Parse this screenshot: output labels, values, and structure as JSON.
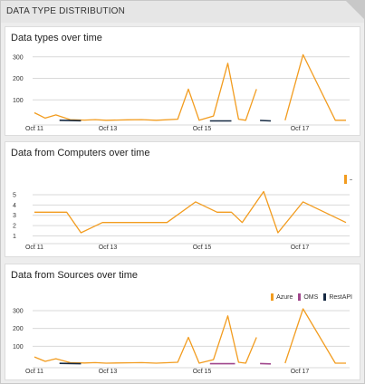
{
  "panel": {
    "title": "DATA TYPE DISTRIBUTION"
  },
  "colors": {
    "azure": "#f29c1f",
    "oms": "#a0468c",
    "restapi": "#152942",
    "grid": "#d9d9d9"
  },
  "legend": {
    "azure": "Azure",
    "oms": "OMS",
    "restapi": "RestAPI"
  },
  "chart_data": [
    {
      "type": "line",
      "title": "Data types over time",
      "x_ticks": [
        "Oct 11",
        "Oct 13",
        "Oct 15",
        "Oct 17"
      ],
      "y_ticks": [
        "100",
        "200",
        "300"
      ],
      "ylim": [
        0,
        320
      ],
      "grid": true,
      "series": [
        {
          "color_key": "azure",
          "segments": [
            [
              [
                0,
                40
              ],
              [
                3,
                15
              ],
              [
                6,
                30
              ],
              [
                10,
                8
              ],
              [
                14,
                6
              ],
              [
                17,
                8
              ],
              [
                20,
                5
              ],
              [
                26,
                7
              ],
              [
                30,
                8
              ],
              [
                34,
                5
              ],
              [
                40,
                10
              ],
              [
                43,
                150
              ],
              [
                46,
                5
              ],
              [
                50,
                25
              ],
              [
                54,
                270
              ],
              [
                57,
                10
              ],
              [
                59,
                5
              ],
              [
                62,
                150
              ]
            ],
            [
              [
                70,
                5
              ],
              [
                75,
                310
              ],
              [
                84,
                5
              ],
              [
                87,
                5
              ]
            ]
          ]
        },
        {
          "color_key": "restapi",
          "segments": [
            [
              [
                7,
                5
              ],
              [
                13,
                3
              ]
            ],
            [
              [
                49,
                2
              ],
              [
                55,
                2
              ]
            ],
            [
              [
                63,
                4
              ],
              [
                66,
                2
              ]
            ]
          ]
        }
      ]
    },
    {
      "type": "line",
      "title": "Data from Computers over time",
      "x_ticks": [
        "Oct 11",
        "Oct 13",
        "Oct 15",
        "Oct 17"
      ],
      "y_ticks": [
        "1",
        "2",
        "3",
        "4",
        "5"
      ],
      "ylim": [
        0.6,
        5.7
      ],
      "grid": true,
      "series": [
        {
          "color_key": "azure",
          "segments": [
            [
              [
                0,
                3.3
              ],
              [
                9,
                3.3
              ],
              [
                13,
                1.3
              ],
              [
                19,
                2.3
              ],
              [
                28,
                2.3
              ],
              [
                37,
                2.3
              ],
              [
                45,
                4.3
              ],
              [
                51,
                3.3
              ],
              [
                55,
                3.3
              ],
              [
                58,
                2.3
              ],
              [
                64,
                5.3
              ],
              [
                68,
                1.3
              ],
              [
                75,
                4.3
              ],
              [
                81,
                3.3
              ],
              [
                87,
                2.3
              ]
            ]
          ]
        }
      ]
    },
    {
      "type": "line",
      "title": "Data from Sources over time",
      "x_ticks": [
        "Oct 11",
        "Oct 13",
        "Oct 15",
        "Oct 17"
      ],
      "y_ticks": [
        "100",
        "200",
        "300"
      ],
      "ylim": [
        0,
        320
      ],
      "grid": true,
      "legend_position": "top-right",
      "series": [
        {
          "name": "Azure",
          "color_key": "azure",
          "segments": [
            [
              [
                0,
                40
              ],
              [
                3,
                15
              ],
              [
                6,
                30
              ],
              [
                10,
                8
              ],
              [
                14,
                6
              ],
              [
                17,
                8
              ],
              [
                20,
                5
              ],
              [
                26,
                7
              ],
              [
                30,
                8
              ],
              [
                34,
                5
              ],
              [
                40,
                10
              ],
              [
                43,
                150
              ],
              [
                46,
                5
              ],
              [
                50,
                25
              ],
              [
                54,
                270
              ],
              [
                57,
                10
              ],
              [
                59,
                5
              ],
              [
                62,
                150
              ]
            ],
            [
              [
                70,
                5
              ],
              [
                75,
                310
              ],
              [
                84,
                5
              ],
              [
                87,
                5
              ]
            ]
          ]
        },
        {
          "name": "OMS",
          "color_key": "oms",
          "segments": [
            [
              [
                49,
                2
              ],
              [
                56,
                2
              ]
            ],
            [
              [
                63,
                3
              ],
              [
                66,
                1
              ]
            ]
          ]
        },
        {
          "name": "RestAPI",
          "color_key": "restapi",
          "segments": [
            [
              [
                7,
                4
              ],
              [
                13,
                2
              ]
            ]
          ]
        }
      ]
    }
  ]
}
